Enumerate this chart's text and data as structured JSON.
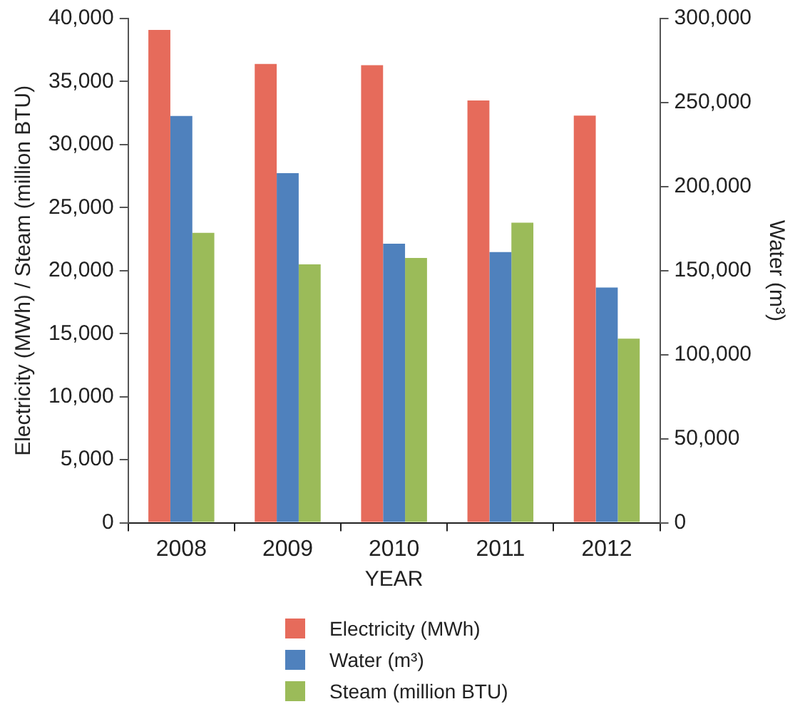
{
  "chart_data": {
    "type": "bar",
    "categories": [
      "2008",
      "2009",
      "2010",
      "2011",
      "2012"
    ],
    "xlabel": "YEAR",
    "ylabel": "Electricity (MWh) / Steam (million BTU)",
    "y2label": "Water (m³)",
    "series": [
      {
        "name": "Electricity (MWh)",
        "color": "#e66b5b",
        "values": [
          39100,
          36400,
          36300,
          33500,
          32300
        ]
      },
      {
        "name": "Water (m³)",
        "color": "#4f81bd",
        "axis": "y2",
        "values": [
          242000,
          208000,
          166000,
          161000,
          140000
        ]
      },
      {
        "name": "Steam (million BTU)",
        "color": "#9bbb59",
        "values": [
          23000,
          20500,
          21000,
          23800,
          14600
        ]
      }
    ],
    "ylim": [
      0,
      40000
    ],
    "yticks": [
      {
        "value": 0,
        "label": "0"
      },
      {
        "value": 5000,
        "label": "5,000"
      },
      {
        "value": 10000,
        "label": "10,000"
      },
      {
        "value": 15000,
        "label": "15,000"
      },
      {
        "value": 20000,
        "label": "20,000"
      },
      {
        "value": 25000,
        "label": "25,000"
      },
      {
        "value": 30000,
        "label": "30,000"
      },
      {
        "value": 35000,
        "label": "35,000"
      },
      {
        "value": 40000,
        "label": "40,000"
      }
    ],
    "y2lim": [
      0,
      300000
    ],
    "y2ticks": [
      {
        "value": 0,
        "label": "0"
      },
      {
        "value": 50000,
        "label": "50,000"
      },
      {
        "value": 100000,
        "label": "100,000"
      },
      {
        "value": 150000,
        "label": "150,000"
      },
      {
        "value": 200000,
        "label": "200,000"
      },
      {
        "value": 250000,
        "label": "250,000"
      },
      {
        "value": 300000,
        "label": "300,000"
      }
    ],
    "grid": false,
    "legend": "bottom"
  }
}
